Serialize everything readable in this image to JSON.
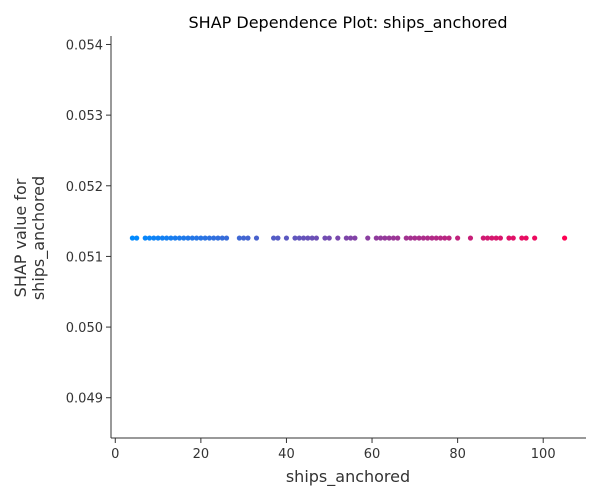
{
  "chart_data": {
    "type": "scatter",
    "title": "SHAP Dependence Plot: ships_anchored",
    "xlabel": "ships_anchored",
    "ylabel_lines": [
      "SHAP value for",
      "ships_anchored"
    ],
    "xlim": [
      -1,
      110
    ],
    "ylim": [
      0.04843,
      0.05412
    ],
    "xticks": [
      0,
      20,
      40,
      60,
      80,
      100
    ],
    "xtick_labels": [
      "0",
      "20",
      "40",
      "60",
      "80",
      "100"
    ],
    "yticks": [
      0.049,
      0.05,
      0.051,
      0.052,
      0.053,
      0.054
    ],
    "ytick_labels": [
      "0.049",
      "0.050",
      "0.051",
      "0.052",
      "0.053",
      "0.054"
    ],
    "grid": false,
    "color_scale": {
      "low": "#008AFF",
      "high": "#FF0052"
    },
    "color_range": [
      4,
      105
    ],
    "constant_y": 0.05126,
    "x": [
      4,
      5,
      7,
      8,
      9,
      10,
      11,
      12,
      13,
      14,
      15,
      16,
      17,
      18,
      19,
      20,
      21,
      22,
      23,
      24,
      25,
      26,
      29,
      30,
      31,
      33,
      37,
      38,
      40,
      42,
      43,
      44,
      45,
      46,
      47,
      49,
      50,
      52,
      54,
      55,
      56,
      59,
      61,
      62,
      63,
      64,
      65,
      66,
      68,
      69,
      70,
      71,
      72,
      73,
      74,
      75,
      76,
      77,
      78,
      80,
      83,
      86,
      87,
      88,
      89,
      90,
      92,
      93,
      95,
      96,
      98,
      105
    ],
    "y_note": "all points share the same SHAP value"
  }
}
